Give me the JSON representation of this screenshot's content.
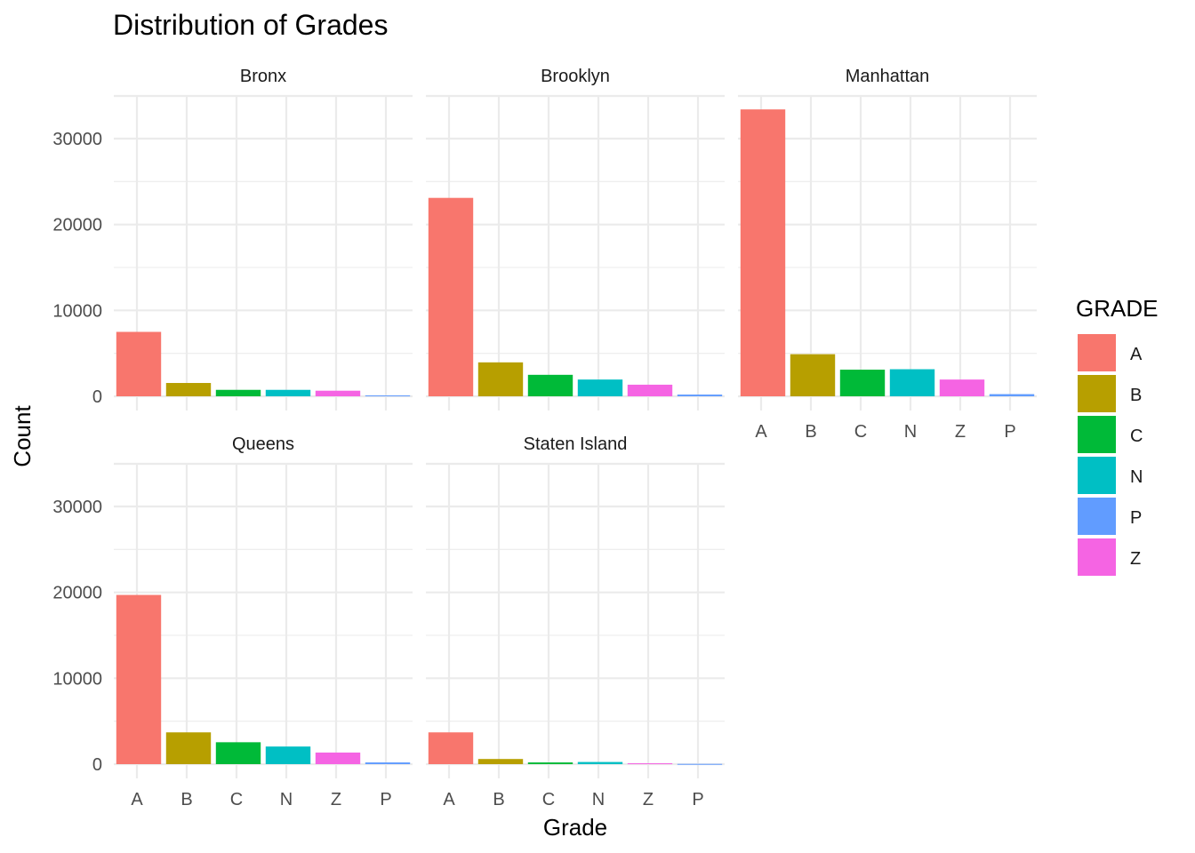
{
  "chart_data": {
    "type": "bar",
    "title": "Distribution of Grades",
    "xlabel": "Grade",
    "ylabel": "Count",
    "categories": [
      "A",
      "B",
      "C",
      "N",
      "Z",
      "P"
    ],
    "ylim": [
      0,
      35000
    ],
    "yticks": [
      0,
      10000,
      20000,
      30000
    ],
    "ytick_labels": [
      "0",
      "10000",
      "20000",
      "30000"
    ],
    "grid": true,
    "legend": {
      "title": "GRADE",
      "position": "right",
      "entries": [
        {
          "label": "A",
          "color": "#F8766D"
        },
        {
          "label": "B",
          "color": "#B79F00"
        },
        {
          "label": "C",
          "color": "#00BA38"
        },
        {
          "label": "N",
          "color": "#00BFC4"
        },
        {
          "label": "P",
          "color": "#619CFF"
        },
        {
          "label": "Z",
          "color": "#F564E3"
        }
      ]
    },
    "facets": [
      {
        "name": "Bronx",
        "values": [
          7500,
          1550,
          750,
          750,
          650,
          100
        ]
      },
      {
        "name": "Brooklyn",
        "values": [
          23100,
          3950,
          2500,
          1950,
          1350,
          200
        ]
      },
      {
        "name": "Manhattan",
        "values": [
          33400,
          4900,
          3100,
          3150,
          1950,
          250
        ]
      },
      {
        "name": "Queens",
        "values": [
          19700,
          3700,
          2550,
          2050,
          1350,
          200
        ]
      },
      {
        "name": "Staten Island",
        "values": [
          3700,
          600,
          200,
          250,
          100,
          30
        ]
      }
    ]
  }
}
